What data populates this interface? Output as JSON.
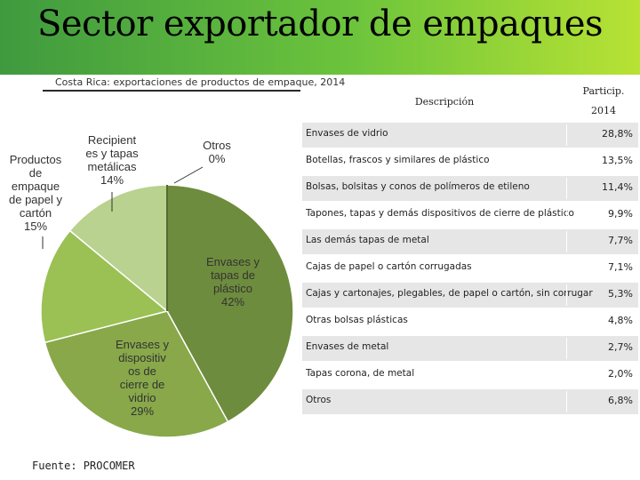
{
  "header": {
    "title": "Sector exportador de empaques"
  },
  "chart_subtitle": "Costa Rica: exportaciones de productos de empaque, 2014",
  "source": "Fuente: PROCOMER",
  "chart_data": [
    {
      "type": "pie",
      "title": "Costa Rica: exportaciones de productos de empaque, 2014",
      "slices": [
        {
          "label_lines": [
            "Envases y",
            "tapas de",
            "plástico",
            "42%"
          ],
          "value": 42,
          "color": "#6e8c3d"
        },
        {
          "label_lines": [
            "Envases y",
            "dispositiv",
            "os de",
            "cierre de",
            "vidrio",
            "29%"
          ],
          "value": 29,
          "color": "#88a84a"
        },
        {
          "label_lines": [
            "Productos",
            "de",
            "empaque",
            "de papel y",
            "cartón",
            "15%"
          ],
          "value": 15,
          "color": "#9bc054"
        },
        {
          "label_lines": [
            "Recipient",
            "es y tapas",
            "metálicas",
            "14%"
          ],
          "value": 14,
          "color": "#b9d28f"
        },
        {
          "label_lines": [
            "Otros",
            "0%"
          ],
          "value": 0,
          "color": "#556b2f"
        }
      ]
    },
    {
      "type": "table",
      "columns": [
        "Descripción",
        "Particip.",
        "2014"
      ],
      "rows": [
        {
          "desc": "Envases de vidrio",
          "pct": "28,8%"
        },
        {
          "desc": "Botellas, frascos y similares de plástico",
          "pct": "13,5%"
        },
        {
          "desc": "Bolsas, bolsitas y conos de polímeros de etileno",
          "pct": "11,4%"
        },
        {
          "desc": "Tapones, tapas y demás dispositivos de cierre de plástico",
          "pct": "9,9%"
        },
        {
          "desc": "Las demás tapas de metal",
          "pct": "7,7%"
        },
        {
          "desc": "Cajas de papel o cartón corrugadas",
          "pct": "7,1%"
        },
        {
          "desc": "Cajas y cartonajes, plegables, de papel o cartón, sin corrugar",
          "pct": "5,3%"
        },
        {
          "desc": "Otras bolsas plásticas",
          "pct": "4,8%"
        },
        {
          "desc": "Envases de metal",
          "pct": "2,7%"
        },
        {
          "desc": "Tapas corona, de metal",
          "pct": "2,0%"
        },
        {
          "desc": "Otros",
          "pct": "6,8%"
        }
      ]
    }
  ]
}
